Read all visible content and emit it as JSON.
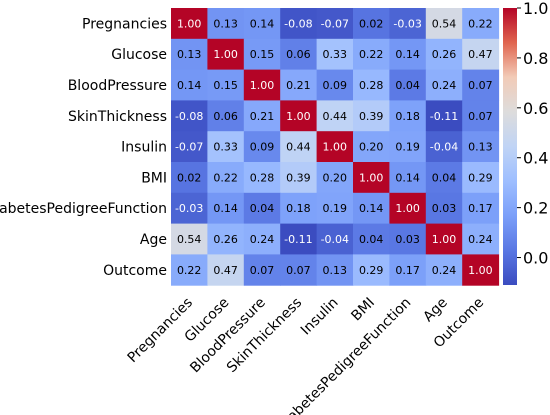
{
  "chart_data": {
    "type": "heatmap",
    "variables": [
      "Pregnancies",
      "Glucose",
      "BloodPressure",
      "SkinThickness",
      "Insulin",
      "BMI",
      "DiabetesPedigreeFunction",
      "Age",
      "Outcome"
    ],
    "matrix": [
      [
        1.0,
        0.13,
        0.14,
        -0.08,
        -0.07,
        0.02,
        -0.03,
        0.54,
        0.22
      ],
      [
        0.13,
        1.0,
        0.15,
        0.06,
        0.33,
        0.22,
        0.14,
        0.26,
        0.47
      ],
      [
        0.14,
        0.15,
        1.0,
        0.21,
        0.09,
        0.28,
        0.04,
        0.24,
        0.07
      ],
      [
        -0.08,
        0.06,
        0.21,
        1.0,
        0.44,
        0.39,
        0.18,
        -0.11,
        0.07
      ],
      [
        -0.07,
        0.33,
        0.09,
        0.44,
        1.0,
        0.2,
        0.19,
        -0.04,
        0.13
      ],
      [
        0.02,
        0.22,
        0.28,
        0.39,
        0.2,
        1.0,
        0.14,
        0.04,
        0.29
      ],
      [
        -0.03,
        0.14,
        0.04,
        0.18,
        0.19,
        0.14,
        1.0,
        0.03,
        0.17
      ],
      [
        0.54,
        0.26,
        0.24,
        -0.11,
        -0.04,
        0.04,
        0.03,
        1.0,
        0.24
      ],
      [
        0.22,
        0.47,
        0.07,
        0.07,
        0.13,
        0.29,
        0.17,
        0.24,
        1.0
      ]
    ],
    "annotation_format": "0.00",
    "colormap": "coolwarm",
    "colorbar": {
      "range": [
        -0.11,
        1.0
      ],
      "ticks": [
        "0.0",
        "0.2",
        "0.4",
        "0.6",
        "0.8",
        "1.0"
      ],
      "tick_values": [
        0.0,
        0.2,
        0.4,
        0.6,
        0.8,
        1.0
      ],
      "position": "right"
    },
    "x_tick_rotation": "45-degree",
    "title": "",
    "xlabel": "",
    "ylabel": ""
  },
  "colors": {
    "low": "#3b4cc0",
    "mid": "#dddddd",
    "high": "#b40426",
    "cell_border": "#ffffff"
  }
}
